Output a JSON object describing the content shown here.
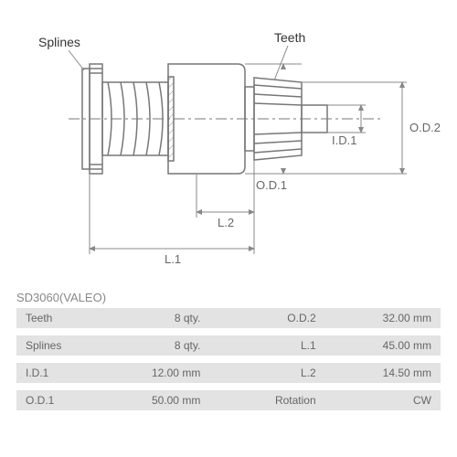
{
  "labels": {
    "splines": "Splines",
    "teeth": "Teeth",
    "od1": "O.D.1",
    "od2": "O.D.2",
    "id1": "I.D.1",
    "l1": "L.1",
    "l2": "L.2"
  },
  "title": "SD3060(VALEO)",
  "specs": [
    {
      "label1": "Teeth",
      "val1": "8 qty.",
      "label2": "O.D.2",
      "val2": "32.00 mm"
    },
    {
      "label1": "Splines",
      "val1": "8 qty.",
      "label2": "L.1",
      "val2": "45.00 mm"
    },
    {
      "label1": "I.D.1",
      "val1": "12.00 mm",
      "label2": "L.2",
      "val2": "14.50 mm"
    },
    {
      "label1": "O.D.1",
      "val1": "50.00 mm",
      "label2": "Rotation",
      "val2": "CW"
    }
  ],
  "style": {
    "stroke": "#777",
    "stroke_width": 1.5,
    "dim_stroke": "#888",
    "dim_width": 1,
    "hatch": "#888"
  }
}
